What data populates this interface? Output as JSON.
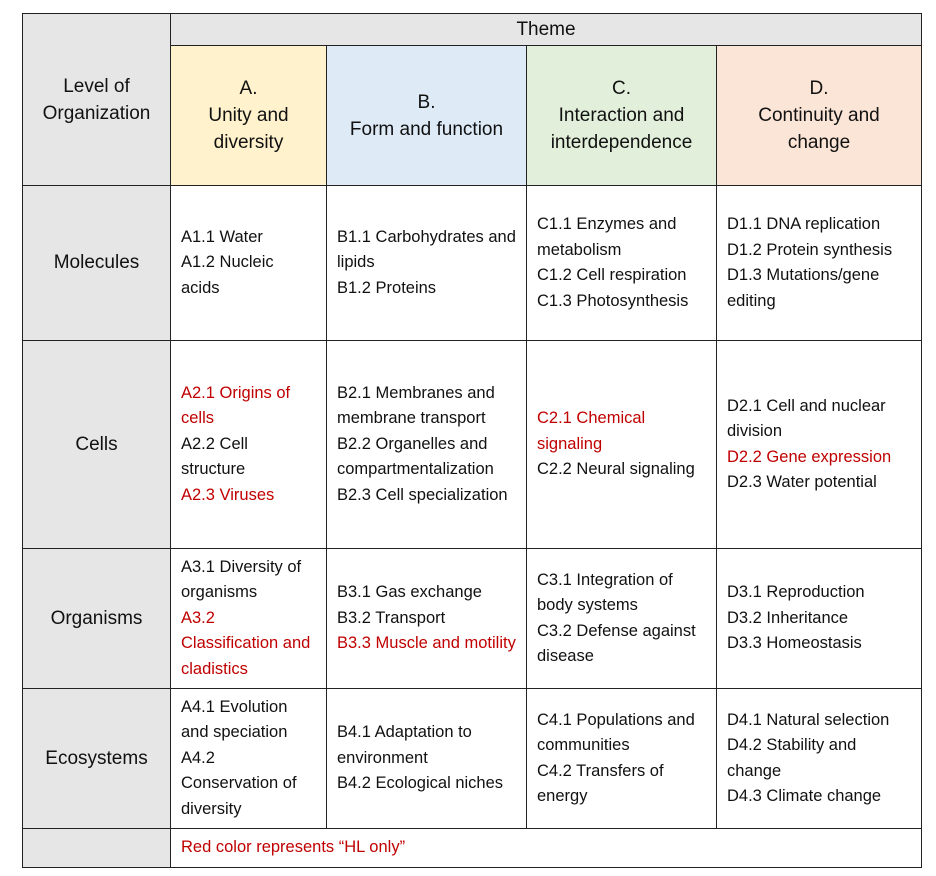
{
  "header": {
    "level_label": "Level of Organization",
    "theme_label": "Theme",
    "themes": [
      {
        "letter": "A.",
        "name": "Unity and diversity",
        "color": "#fff2cc"
      },
      {
        "letter": "B.",
        "name": "Form and function",
        "color": "#deebf7"
      },
      {
        "letter": "C.",
        "name": "Interaction and interdependence",
        "color": "#e2efda"
      },
      {
        "letter": "D.",
        "name": "Continuity and change",
        "color": "#fbe5d6"
      }
    ]
  },
  "hl_color": "#c00000",
  "rows": [
    {
      "level": "Molecules",
      "cells": [
        [
          {
            "text": "A1.1 Water",
            "hl": false
          },
          {
            "text": "A1.2 Nucleic acids",
            "hl": false
          }
        ],
        [
          {
            "text": "B1.1 Carbohydrates and lipids",
            "hl": false
          },
          {
            "text": "B1.2 Proteins",
            "hl": false
          }
        ],
        [
          {
            "text": "C1.1 Enzymes and metabolism",
            "hl": false
          },
          {
            "text": "C1.2 Cell respiration",
            "hl": false
          },
          {
            "text": "C1.3 Photosynthesis",
            "hl": false
          }
        ],
        [
          {
            "text": "D1.1 DNA replication",
            "hl": false
          },
          {
            "text": "D1.2 Protein synthesis",
            "hl": false
          },
          {
            "text": "D1.3 Mutations/gene editing",
            "hl": false
          }
        ]
      ]
    },
    {
      "level": "Cells",
      "cells": [
        [
          {
            "text": "A2.1 Origins of cells",
            "hl": true
          },
          {
            "text": "A2.2 Cell structure",
            "hl": false
          },
          {
            "text": "A2.3 Viruses",
            "hl": true
          }
        ],
        [
          {
            "text": "B2.1 Membranes and membrane transport",
            "hl": false
          },
          {
            "text": "B2.2 Organelles and compartmentalization",
            "hl": false
          },
          {
            "text": "B2.3 Cell specialization",
            "hl": false
          }
        ],
        [
          {
            "text": "C2.1 Chemical signaling",
            "hl": true
          },
          {
            "text": "C2.2 Neural signaling",
            "hl": false
          }
        ],
        [
          {
            "text": "D2.1 Cell and nuclear division",
            "hl": false
          },
          {
            "text": "D2.2 Gene expression",
            "hl": true
          },
          {
            "text": "D2.3 Water potential",
            "hl": false
          }
        ]
      ]
    },
    {
      "level": "Organisms",
      "cells": [
        [
          {
            "text": "A3.1 Diversity of organisms",
            "hl": false
          },
          {
            "text": "A3.2 Classification and cladistics",
            "hl": true
          }
        ],
        [
          {
            "text": "B3.1 Gas exchange",
            "hl": false
          },
          {
            "text": "B3.2 Transport",
            "hl": false
          },
          {
            "text": "B3.3 Muscle and motility",
            "hl": true
          }
        ],
        [
          {
            "text": "C3.1 Integration of body systems",
            "hl": false
          },
          {
            "text": "C3.2 Defense against disease",
            "hl": false
          }
        ],
        [
          {
            "text": "D3.1 Reproduction",
            "hl": false
          },
          {
            "text": "D3.2 Inheritance",
            "hl": false
          },
          {
            "text": "D3.3 Homeostasis",
            "hl": false
          }
        ]
      ]
    },
    {
      "level": "Ecosystems",
      "cells": [
        [
          {
            "text": "A4.1 Evolution and speciation",
            "hl": false
          },
          {
            "text": "A4.2 Conservation of diversity",
            "hl": false
          }
        ],
        [
          {
            "text": "B4.1 Adaptation to environment",
            "hl": false
          },
          {
            "text": "B4.2 Ecological niches",
            "hl": false
          }
        ],
        [
          {
            "text": "C4.1 Populations and communities",
            "hl": false
          },
          {
            "text": "C4.2 Transfers of energy",
            "hl": false
          }
        ],
        [
          {
            "text": "D4.1 Natural selection",
            "hl": false
          },
          {
            "text": "D4.2 Stability and change",
            "hl": false
          },
          {
            "text": "D4.3 Climate change",
            "hl": false
          }
        ]
      ]
    }
  ],
  "footnote": "Red color represents “HL only”"
}
